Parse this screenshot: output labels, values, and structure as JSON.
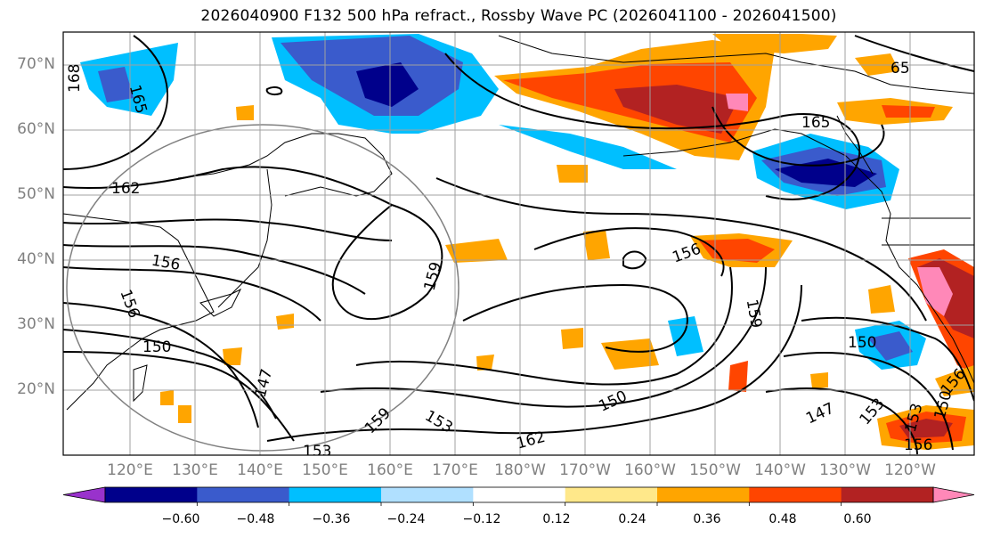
{
  "title": "2026040900 F132 500 hPa refract., Rossby Wave PC (2026041100 - 2026041500)",
  "lat_labels": [
    "70°N",
    "60°N",
    "50°N",
    "40°N",
    "30°N",
    "20°N"
  ],
  "lon_labels": [
    "120°E",
    "130°E",
    "140°E",
    "150°E",
    "160°E",
    "170°E",
    "180°W",
    "170°W",
    "160°W",
    "150°W",
    "140°W",
    "130°W",
    "120°W"
  ],
  "contour_labels": [
    "168",
    "165",
    "162",
    "156",
    "156",
    "159",
    "150",
    "147",
    "159",
    "153",
    "153",
    "162",
    "150",
    "159",
    "156",
    "150",
    "147",
    "153",
    "153",
    "150",
    "156",
    "156",
    "165",
    "65"
  ],
  "colorbar": {
    "ticks": [
      "−0.60",
      "−0.48",
      "−0.36",
      "−0.24",
      "−0.12",
      "0.12",
      "0.24",
      "0.36",
      "0.48",
      "0.60"
    ],
    "colors": [
      "#9932cc",
      "#00008b",
      "#3a5bcc",
      "#00bfff",
      "#b0e0ff",
      "#ffffff",
      "#ffe88a",
      "#ffa500",
      "#ff4500",
      "#b22222",
      "#ff88b8"
    ]
  },
  "palette": {
    "blue_dark": "#00008b",
    "blue_mid": "#3a5bcc",
    "blue_light": "#00bfff",
    "orange_light": "#ffe88a",
    "orange": "#ffa500",
    "red_orange": "#ff4500",
    "dark_red": "#b22222",
    "pink": "#ff88b8",
    "land_outline": "#000000"
  }
}
